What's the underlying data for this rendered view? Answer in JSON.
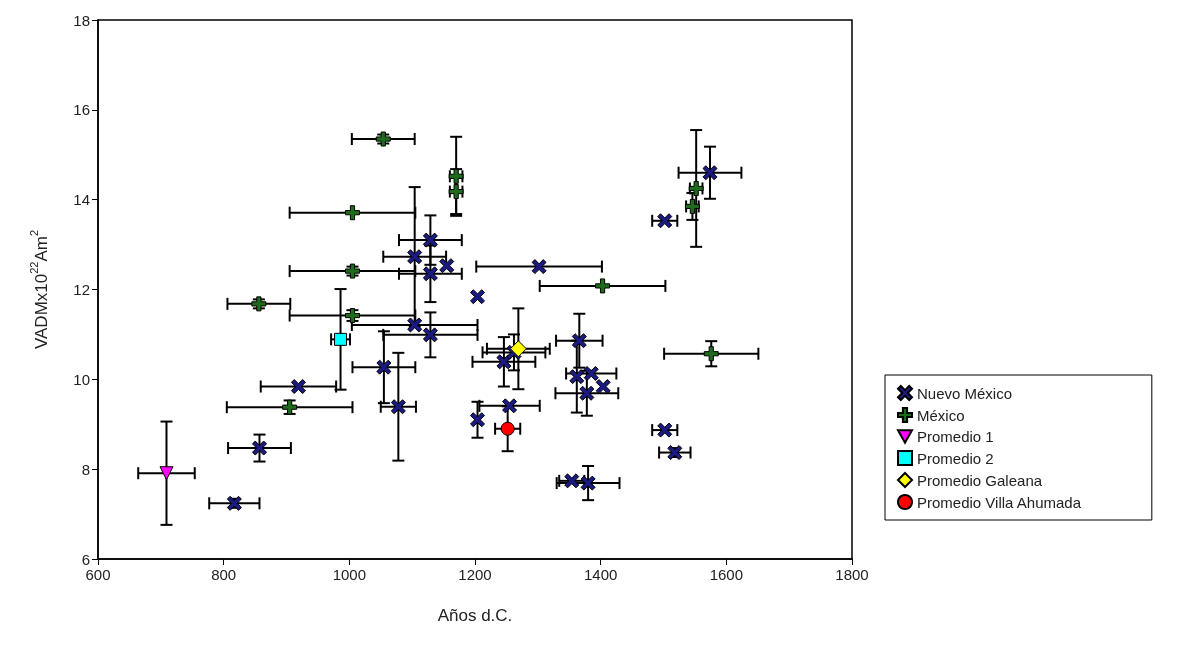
{
  "chart_data": {
    "type": "scatter",
    "xlabel": "Años d.C.",
    "ylabel": "VADMx10$^{22}$Am$^{2}$",
    "xlim": [
      600,
      1800
    ],
    "xticks": [
      600,
      800,
      1000,
      1200,
      1400,
      1600,
      1800
    ],
    "ylim": [
      6,
      18
    ],
    "yticks": [
      6,
      8,
      10,
      12,
      14,
      16,
      18
    ],
    "grid": false,
    "legend": "right",
    "series": [
      {
        "name": "Nuevo México",
        "color": "#1a1a80",
        "marker": "cross",
        "x": [
          1574,
          1502,
          1302,
          1204,
          1366,
          1129,
          1104,
          1155,
          1129,
          1104,
          1129,
          1055,
          919,
          1078,
          857,
          817,
          1204,
          1246,
          1255,
          1362,
          1385,
          1404,
          1378,
          1354,
          1380,
          1502,
          1518,
          1262
        ],
        "values": [
          14.6,
          13.53,
          12.51,
          11.84,
          10.86,
          13.1,
          12.73,
          12.53,
          12.35,
          11.21,
          10.99,
          10.27,
          9.84,
          9.39,
          8.47,
          7.24,
          9.1,
          10.39,
          9.41,
          10.06,
          10.13,
          9.84,
          9.69,
          7.74,
          7.69,
          8.87,
          8.37,
          10.6
        ],
        "xerrors": [
          50,
          20,
          100,
          null,
          37,
          50,
          50,
          null,
          50,
          100,
          75,
          50,
          60,
          28,
          50,
          40,
          null,
          50,
          48,
          null,
          40,
          null,
          50,
          20,
          50,
          20,
          25,
          50
        ],
        "errors": [
          0.58,
          null,
          null,
          null,
          0.6,
          0.55,
          1.55,
          null,
          0.63,
          null,
          0.5,
          0.8,
          null,
          1.2,
          0.3,
          0.1,
          0.4,
          0.55,
          null,
          0.8,
          null,
          null,
          0.5,
          null,
          0.38,
          null,
          0.1,
          0.4
        ]
      },
      {
        "name": "México",
        "color": "#1e6b1e",
        "marker": "plus",
        "x": [
          1552,
          1546,
          1403,
          1576,
          1054,
          1170,
          1170,
          1005,
          1005,
          856,
          1005,
          905
        ],
        "values": [
          14.25,
          13.85,
          12.08,
          10.57,
          15.35,
          14.52,
          14.18,
          13.71,
          12.41,
          11.68,
          11.42,
          9.38
        ],
        "xerrors": [
          10,
          10,
          100,
          75,
          50,
          10,
          10,
          100,
          100,
          50,
          100,
          100
        ],
        "errors": [
          1.3,
          0.3,
          null,
          0.28,
          0.1,
          0.88,
          0.5,
          null,
          0.1,
          0.1,
          0.12,
          0.15
        ]
      },
      {
        "name": "Promedio 1",
        "color": "#ff00ff",
        "marker": "triangle",
        "x": [
          709
        ],
        "values": [
          7.91
        ],
        "xerrors": [
          45
        ],
        "errors": [
          1.15
        ]
      },
      {
        "name": "Promedio 2",
        "color": "#00ffff",
        "marker": "square",
        "x": [
          986
        ],
        "values": [
          10.89
        ],
        "xerrors": [
          15
        ],
        "errors": [
          1.12
        ]
      },
      {
        "name": "Promedio Galeana",
        "color": "#ffff00",
        "marker": "diamond",
        "x": [
          1269
        ],
        "values": [
          10.68
        ],
        "xerrors": [
          50
        ],
        "errors": [
          0.9
        ]
      },
      {
        "name": "Promedio Villa Ahumada",
        "color": "#ff0000",
        "marker": "circle",
        "x": [
          1252
        ],
        "values": [
          8.9
        ],
        "xerrors": [
          20
        ],
        "errors": [
          0.5
        ]
      }
    ]
  }
}
